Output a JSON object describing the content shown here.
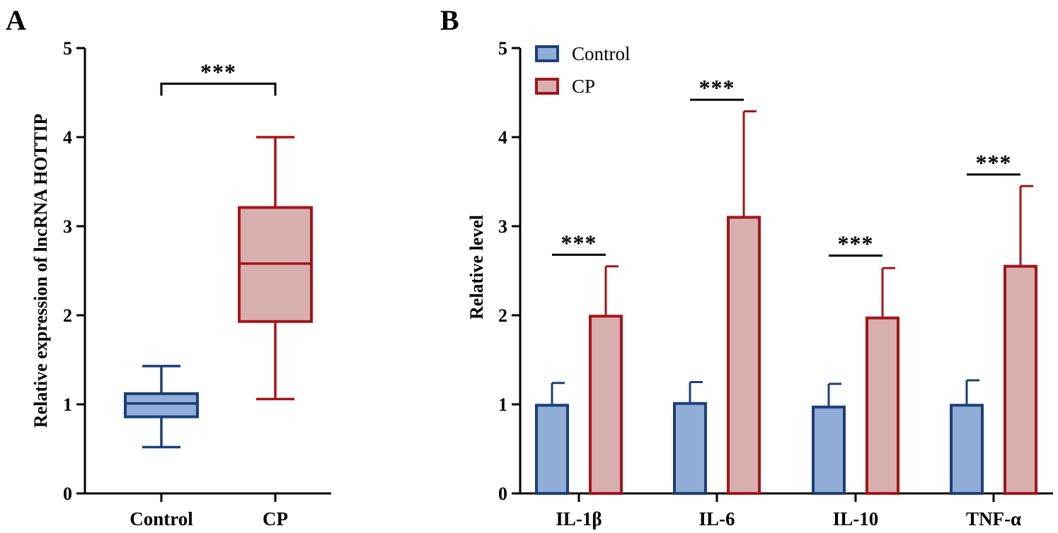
{
  "colors": {
    "control_fill": "#8fadd6",
    "control_stroke": "#1d3f78",
    "cp_fill": "#d7afae",
    "cp_stroke": "#a3151a",
    "axis": "#000000"
  },
  "chart_data": [
    {
      "panel": "A",
      "type": "box",
      "ylabel": "Relative expression of lncRNA HOTTIP",
      "ylim": [
        0,
        5
      ],
      "yticks": [
        "0",
        "1",
        "2",
        "3",
        "4",
        "5"
      ],
      "categories": [
        "Control",
        "CP"
      ],
      "boxes": [
        {
          "name": "Control",
          "min": 0.52,
          "q1": 0.86,
          "median": 1.01,
          "q3": 1.12,
          "max": 1.43
        },
        {
          "name": "CP",
          "min": 1.06,
          "q1": 1.93,
          "median": 2.58,
          "q3": 3.21,
          "max": 4.0
        }
      ],
      "significance": [
        {
          "label": "***",
          "between": [
            "Control",
            "CP"
          ],
          "bar_value": 4.6
        }
      ]
    },
    {
      "panel": "B",
      "type": "bar",
      "ylabel": "Relative level",
      "ylim": [
        0,
        5
      ],
      "yticks": [
        "0",
        "1",
        "2",
        "3",
        "4",
        "5"
      ],
      "categories": [
        "IL-1β",
        "IL-6",
        "IL-10",
        "TNF-α"
      ],
      "series": [
        {
          "name": "Control",
          "values": [
            0.99,
            1.01,
            0.97,
            0.99
          ],
          "error": [
            0.25,
            0.24,
            0.26,
            0.28
          ]
        },
        {
          "name": "CP",
          "values": [
            1.99,
            3.1,
            1.97,
            2.55
          ],
          "error": [
            0.56,
            1.19,
            0.56,
            0.9
          ]
        }
      ],
      "legend": [
        "Control",
        "CP"
      ],
      "legend_position": "top-left",
      "significance": [
        {
          "label": "***",
          "category": "IL-1β",
          "bar_value": 2.68
        },
        {
          "label": "***",
          "category": "IL-6",
          "bar_value": 4.42
        },
        {
          "label": "***",
          "category": "IL-10",
          "bar_value": 2.67
        },
        {
          "label": "***",
          "category": "TNF-α",
          "bar_value": 3.58
        }
      ]
    }
  ]
}
